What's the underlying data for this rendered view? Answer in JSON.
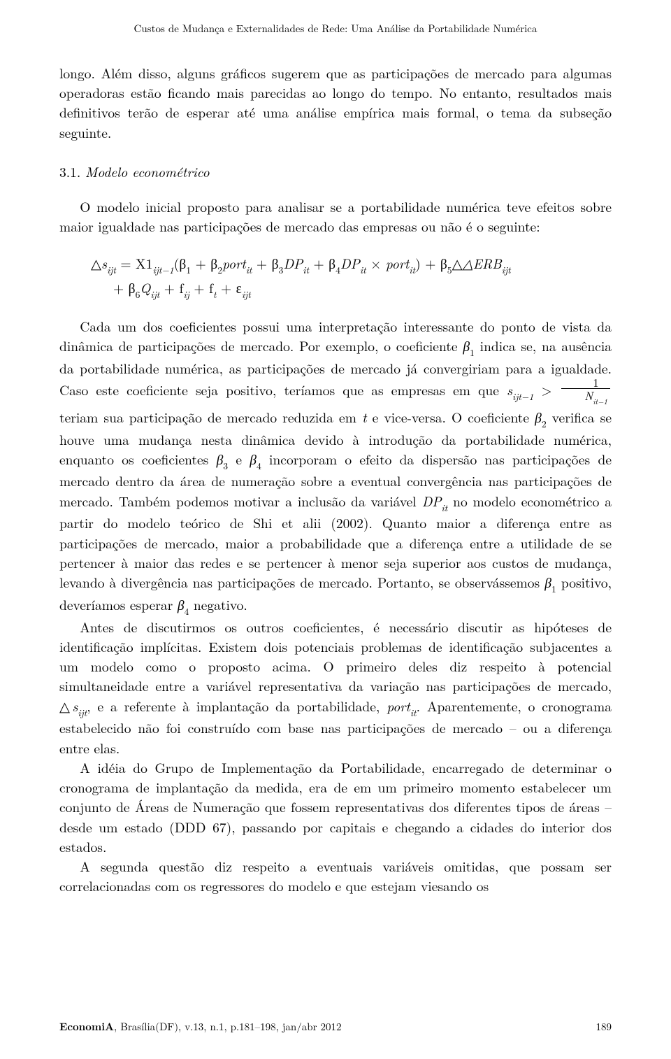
{
  "header": {
    "running_title": "Custos de Mudança e Externalidades de Rede: Uma Análise da Portabilidade Numérica"
  },
  "body": {
    "p1": "longo. Além disso, alguns gráficos sugerem que as participações de mercado para algumas operadoras estão ficando mais parecidas ao longo do tempo. No entanto, resultados mais definitivos terão de esperar até uma análise empírica mais formal, o tema da subseção seguinte.",
    "section_number": "3.1.",
    "section_title": "Modelo econométrico",
    "p2": "O modelo inicial proposto para analisar se a portabilidade numérica teve efeitos sobre maior igualdade nas participações de mercado das empresas ou não é o seguinte:",
    "p3_part1": "Cada um dos coeficientes possui uma interpretação interessante do ponto de vista da dinâmica de participações de mercado. Por exemplo, o coeficiente ",
    "p3_beta1_a": "β",
    "p3_beta1_b": "1",
    "p3_part2": " indica se, na ausência da portabilidade numérica, as participações de mercado já convergiriam para a igualdade. Caso este coeficiente seja positivo, teríamos que as empresas em que ",
    "p3_s": "s",
    "p3_s_sub": "ijt−1",
    "p3_gt": " > ",
    "p3_frac_num": "1",
    "p3_frac_den": "N",
    "p3_frac_den_sub": "it−1",
    "p3_part3": " teriam sua participação de mercado reduzida em ",
    "p3_t": "t",
    "p3_part4": " e vice-versa. O coeficiente ",
    "p3_beta2_a": "β",
    "p3_beta2_b": "2",
    "p3_part5": " verifica se houve uma mudança nesta dinâmica devido à introdução da portabilidade numérica, enquanto os coeficientes ",
    "p3_beta3_a": "β",
    "p3_beta3_b": "3",
    "p3_e": " e ",
    "p3_beta4_a": "β",
    "p3_beta4_b": "4",
    "p3_part6": " incorporam o efeito da dispersão nas participações de mercado dentro da área de numeração sobre a eventual convergência nas participações de mercado. Também podemos motivar a inclusão da variável ",
    "p3_DP": "DP",
    "p3_DP_sub": "it",
    "p3_part7": " no modelo econométrico a partir do modelo teórico de Shi et alii (2002). Quanto maior a diferença entre as participações de mercado, maior a probabilidade que a diferença entre a utilidade de se pertencer à maior das redes e se pertencer à menor seja superior aos custos de mudança, levando à divergência nas participações de mercado. Portanto, se observássemos ",
    "p3_beta1c_a": "β",
    "p3_beta1c_b": "1",
    "p3_part8": " positivo, deveríamos esperar ",
    "p3_beta4b_a": "β",
    "p3_beta4b_b": "4",
    "p3_part9": " negativo.",
    "p4_part1": "Antes de discutirmos os outros coeficientes, é necessário discutir as hipóteses de identificação implícitas. Existem dois potenciais problemas de identificação subjacentes a um modelo como o proposto acima. O primeiro deles diz respeito à potencial simultaneidade entre a variável representativa da variação nas participações de mercado, ",
    "p4_tri": "△s",
    "p4_tri_sub": "ijt",
    "p4_part2": ", e a referente à implantação da portabilidade, ",
    "p4_port": "port",
    "p4_port_sub": "it",
    "p4_part3": ". Aparentemente, o cronograma estabelecido não foi construído com base nas participações de mercado – ou a diferença entre elas.",
    "p5": "A idéia do Grupo de Implementação da Portabilidade, encarregado de determinar o cronograma de implantação da medida, era de em um primeiro momento estabelecer um conjunto de Áreas de Numeração que fossem representativas dos diferentes tipos de áreas – desde um estado (DDD 67), passando por capitais e chegando a cidades do interior dos estados.",
    "p6": "A segunda questão diz respeito a eventuais variáveis omitidas, que possam ser correlacionadas com os regressores do modelo e que estejam viesando os"
  },
  "equation": {
    "line1_a": "△s",
    "line1_a_sub": "ijt",
    "line1_eq": " = X1",
    "line1_b_sub": "ijt−1",
    "line1_open": "(β",
    "line1_b1": "1",
    "line1_plus1": " + β",
    "line1_b2": "2",
    "line1_port": "port",
    "line1_port_sub": "it",
    "line1_plus2": " + β",
    "line1_b3": "3",
    "line1_DP1": "DP",
    "line1_DP1_sub": "it",
    "line1_plus3": " + β",
    "line1_b4": "4",
    "line1_DP2": "DP",
    "line1_DP2_sub": "it",
    "line1_times": " × port",
    "line1_port2_sub": "it",
    "line1_close": ") + β",
    "line1_b5": "5",
    "line1_ERB": "△ERB",
    "line1_ERB_sub": "ijt",
    "line2_plus0": "+ β",
    "line2_b6": "6",
    "line2_Q": "Q",
    "line2_Q_sub": "ijt",
    "line2_plus1": " + f",
    "line2_f1_sub": "ij",
    "line2_plus2": " + f",
    "line2_f2_sub": "t",
    "line2_plus3": " + ε",
    "line2_eps_sub": "ijt"
  },
  "footer": {
    "journal": "EconomiA",
    "rest": ", Brasília(DF), v.13, n.1, p.181–198, jan/abr 2012",
    "page": "189"
  }
}
